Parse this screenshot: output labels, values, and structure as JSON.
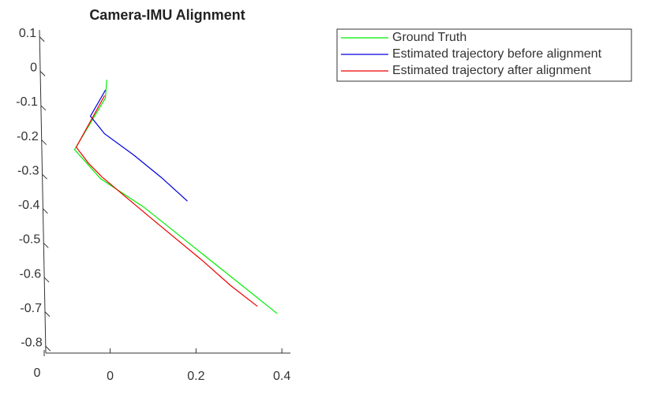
{
  "chart_data": {
    "type": "line",
    "title": "Camera-IMU Alignment",
    "xlim": [
      -0.15,
      0.42
    ],
    "xticks": [
      0,
      0.2,
      0.4
    ],
    "ylim": [
      -0.82,
      0.12
    ],
    "yticks": [
      0.1,
      0,
      -0.1,
      -0.2,
      -0.3,
      -0.4,
      -0.5,
      -0.6,
      -0.7,
      -0.8
    ],
    "zticks": [
      0
    ],
    "legend": "top-right",
    "series": [
      {
        "name": "Ground Truth",
        "color": "#00ee00",
        "x": [
          -0.008,
          -0.011,
          -0.083,
          -0.022,
          0.079,
          0.389
        ],
        "values": [
          -0.025,
          -0.078,
          -0.228,
          -0.313,
          -0.396,
          -0.705
        ]
      },
      {
        "name": "Estimated trajectory before alignment",
        "color": "#0000dd",
        "x": [
          -0.011,
          -0.046,
          -0.013,
          0.055,
          0.119,
          0.18
        ],
        "values": [
          -0.055,
          -0.131,
          -0.182,
          -0.244,
          -0.309,
          -0.378
        ]
      },
      {
        "name": "Estimated trajectory after alignment",
        "color": "#ee0000",
        "x": [
          -0.013,
          -0.079,
          -0.051,
          -0.018,
          0.092,
          0.215,
          0.281,
          0.343
        ],
        "values": [
          -0.071,
          -0.221,
          -0.267,
          -0.309,
          -0.424,
          -0.551,
          -0.624,
          -0.684
        ]
      }
    ]
  }
}
